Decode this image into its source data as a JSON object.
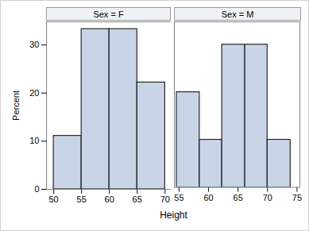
{
  "chart_data": {
    "type": "histogram",
    "x_label": "Height",
    "y_label": "Percent",
    "color": "#c9d4e6",
    "ylim": [
      0,
      34.8
    ],
    "yticks": [
      0,
      10,
      20,
      30
    ],
    "panels": [
      {
        "title": "Sex = F",
        "bins": [
          50,
          55,
          60,
          65,
          70
        ],
        "values": [
          11.1,
          33.3,
          33.3,
          22.2
        ],
        "xlim": [
          48.7,
          71.1
        ],
        "xticks": [
          50,
          55,
          60,
          65,
          70
        ]
      },
      {
        "title": "Sex = M",
        "bins": [
          54.6,
          58.5,
          62.3,
          66.2,
          70.0,
          73.9
        ],
        "values": [
          20,
          10,
          30,
          30,
          10
        ],
        "xlim": [
          54.2,
          75.5
        ],
        "xticks": [
          55,
          60,
          65,
          70,
          75
        ]
      }
    ]
  }
}
